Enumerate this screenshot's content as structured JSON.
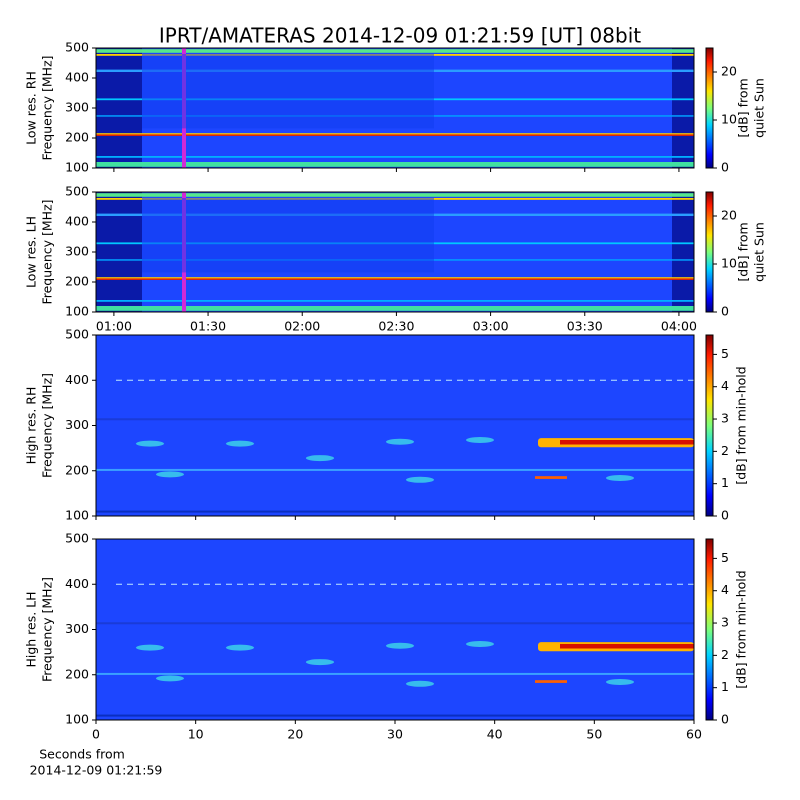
{
  "chart_data": [
    {
      "type": "heatmap",
      "title": "IPRT/AMATERAS 2014-12-09 01:21:59 [UT]   08bit",
      "ylabel": [
        "Low res. RH",
        "Frequency [MHz]"
      ],
      "ylim": [
        100,
        500
      ],
      "yticks": [
        100,
        200,
        300,
        400,
        500
      ],
      "colorbar_label": [
        "[dB] from",
        "quiet Sun"
      ],
      "clim": [
        0,
        25
      ],
      "cticks": [
        0,
        10,
        20
      ],
      "colormap": "jet"
    },
    {
      "type": "heatmap",
      "ylabel": [
        "Low res. LH",
        "Frequency [MHz]"
      ],
      "ylim": [
        100,
        500
      ],
      "yticks": [
        100,
        200,
        300,
        400,
        500
      ],
      "xlim": [
        54.3,
        244.8
      ],
      "xticks": [
        {
          "value": 60,
          "label": "01:00"
        },
        {
          "value": 90,
          "label": "01:30"
        },
        {
          "value": 120,
          "label": "02:00"
        },
        {
          "value": 150,
          "label": "02:30"
        },
        {
          "value": 180,
          "label": "03:00"
        },
        {
          "value": 210,
          "label": "03:30"
        },
        {
          "value": 240,
          "label": "04:00"
        }
      ],
      "colorbar_label": [
        "[dB] from",
        "quiet Sun"
      ],
      "clim": [
        0,
        25
      ],
      "cticks": [
        0,
        10,
        20
      ],
      "colormap": "jet"
    },
    {
      "type": "heatmap",
      "ylabel": [
        "High res. RH",
        "Frequency [MHz]"
      ],
      "ylim": [
        100,
        500
      ],
      "yticks": [
        100,
        200,
        300,
        400,
        500
      ],
      "colorbar_label": [
        "[dB] from min-hold"
      ],
      "clim": [
        0,
        5.6
      ],
      "cticks": [
        0,
        1,
        2,
        3,
        4,
        5
      ],
      "colormap": "jet"
    },
    {
      "type": "heatmap",
      "ylabel": [
        "High res. LH",
        "Frequency [MHz]"
      ],
      "ylim": [
        100,
        500
      ],
      "yticks": [
        100,
        200,
        300,
        400,
        500
      ],
      "xlim": [
        0,
        60
      ],
      "xticks": [
        0,
        10,
        20,
        30,
        40,
        50,
        60
      ],
      "xlabel": [
        "Seconds from",
        "2014-12-09 01:21:59"
      ],
      "colorbar_label": [
        "[dB] from min-hold"
      ],
      "clim": [
        0,
        5.6
      ],
      "cticks": [
        0,
        1,
        2,
        3,
        4,
        5
      ],
      "colormap": "jet"
    }
  ]
}
